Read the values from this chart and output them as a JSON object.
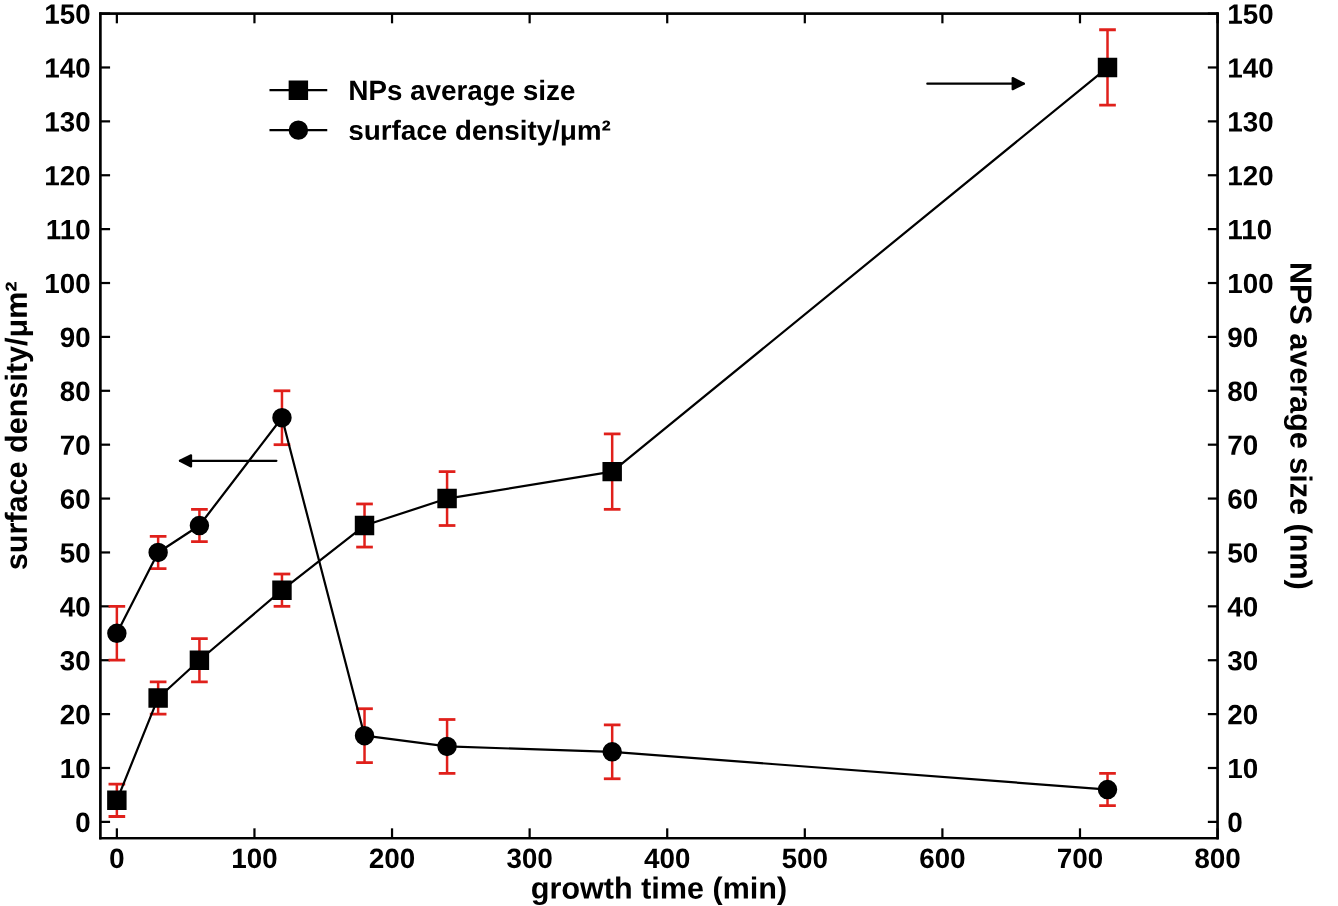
{
  "chart_data": {
    "type": "line",
    "xlabel": "growth time (min)",
    "ylabel": "surface density/μm²",
    "y2label": "NPS average size (nm)",
    "x": [
      0,
      30,
      60,
      120,
      180,
      240,
      360,
      720
    ],
    "series": [
      {
        "name": "NPs average size",
        "color": "#000000",
        "marker": "square",
        "axis": "y2",
        "values": [
          4,
          23,
          30,
          43,
          55,
          60,
          65,
          140
        ],
        "errors": [
          3,
          3,
          4,
          3,
          4,
          5,
          7,
          7
        ]
      },
      {
        "name": "surface density/μm²",
        "color": "#000000",
        "marker": "circle",
        "values": [
          35,
          50,
          55,
          75,
          16,
          14,
          13,
          6
        ],
        "errors": [
          5,
          3,
          3,
          5,
          5,
          5,
          5,
          3
        ]
      }
    ],
    "xlim": [
      -12,
      800
    ],
    "xticks": [
      0,
      100,
      200,
      300,
      400,
      500,
      600,
      700,
      800
    ],
    "ylim": [
      -3,
      150
    ],
    "yticks": [
      0,
      10,
      20,
      30,
      40,
      50,
      60,
      70,
      80,
      90,
      100,
      110,
      120,
      130,
      140,
      150
    ],
    "y2lim": [
      -3,
      150
    ],
    "y2ticks": [
      0,
      10,
      20,
      30,
      40,
      50,
      60,
      70,
      80,
      90,
      100,
      110,
      120,
      130,
      140,
      150
    ],
    "legend": "top left",
    "grid": false,
    "line_style": "solid"
  }
}
